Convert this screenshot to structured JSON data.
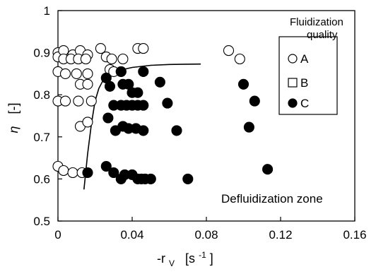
{
  "chart_data": {
    "type": "scatter",
    "title": "",
    "xlabel": {
      "prefix": "-r",
      "sub": "V",
      "unit_open": "[s",
      "unit_sup": "-1",
      "unit_close": "]"
    },
    "ylabel": {
      "symbol": "η",
      "unit": "[-]"
    },
    "xlim": [
      0,
      0.16
    ],
    "ylim": [
      0.5,
      1
    ],
    "x_ticks": [
      0,
      0.04,
      0.08,
      0.12,
      0.16
    ],
    "x_tick_labels": [
      "0",
      "0.04",
      "0.08",
      "0.12",
      "0.16"
    ],
    "y_ticks": [
      0.5,
      0.6,
      0.7,
      0.8,
      0.9,
      1
    ],
    "y_tick_labels": [
      "0.5",
      "0.6",
      "0.7",
      "0.8",
      "0.9",
      "1"
    ],
    "grid": false,
    "legend": {
      "title_lines": [
        "Fluidization",
        "quality"
      ],
      "placement": "top-right",
      "entries": [
        {
          "label": "A",
          "marker": "open-circle"
        },
        {
          "label": "B",
          "marker": "open-square"
        },
        {
          "label": "C",
          "marker": "filled-circle"
        }
      ]
    },
    "annotation": "Defluidization zone",
    "series": [
      {
        "name": "A",
        "marker": "open-circle",
        "points": [
          [
            0.0,
            0.9
          ],
          [
            0.0,
            0.89
          ],
          [
            0.003,
            0.905
          ],
          [
            0.008,
            0.895
          ],
          [
            0.012,
            0.905
          ],
          [
            0.016,
            0.895
          ],
          [
            0.023,
            0.91
          ],
          [
            0.026,
            0.89
          ],
          [
            0.029,
            0.885
          ],
          [
            0.035,
            0.885
          ],
          [
            0.043,
            0.91
          ],
          [
            0.046,
            0.91
          ],
          [
            0.092,
            0.905
          ],
          [
            0.098,
            0.885
          ],
          [
            0.003,
            0.885
          ],
          [
            0.007,
            0.885
          ],
          [
            0.011,
            0.885
          ],
          [
            0.015,
            0.885
          ],
          [
            0.0,
            0.855
          ],
          [
            0.004,
            0.85
          ],
          [
            0.01,
            0.85
          ],
          [
            0.016,
            0.85
          ],
          [
            0.028,
            0.86
          ],
          [
            0.03,
            0.855
          ],
          [
            0.034,
            0.855
          ],
          [
            0.012,
            0.825
          ],
          [
            0.016,
            0.825
          ],
          [
            0.0,
            0.785
          ],
          [
            0.004,
            0.785
          ],
          [
            0.011,
            0.785
          ],
          [
            0.018,
            0.785
          ],
          [
            0.012,
            0.725
          ],
          [
            0.016,
            0.735
          ],
          [
            0.0,
            0.63
          ],
          [
            0.003,
            0.62
          ],
          [
            0.008,
            0.615
          ],
          [
            0.013,
            0.615
          ]
        ]
      },
      {
        "name": "C",
        "marker": "filled-circle",
        "points": [
          [
            0.026,
            0.84
          ],
          [
            0.034,
            0.855
          ],
          [
            0.035,
            0.825
          ],
          [
            0.038,
            0.825
          ],
          [
            0.028,
            0.82
          ],
          [
            0.03,
            0.775
          ],
          [
            0.034,
            0.775
          ],
          [
            0.037,
            0.775
          ],
          [
            0.04,
            0.775
          ],
          [
            0.043,
            0.775
          ],
          [
            0.046,
            0.775
          ],
          [
            0.027,
            0.745
          ],
          [
            0.031,
            0.715
          ],
          [
            0.035,
            0.725
          ],
          [
            0.038,
            0.72
          ],
          [
            0.042,
            0.72
          ],
          [
            0.046,
            0.715
          ],
          [
            0.016,
            0.615
          ],
          [
            0.026,
            0.63
          ],
          [
            0.03,
            0.615
          ],
          [
            0.034,
            0.6
          ],
          [
            0.036,
            0.61
          ],
          [
            0.04,
            0.61
          ],
          [
            0.043,
            0.6
          ],
          [
            0.045,
            0.6
          ],
          [
            0.047,
            0.6
          ],
          [
            0.05,
            0.6
          ],
          [
            0.046,
            0.855
          ],
          [
            0.055,
            0.83
          ],
          [
            0.059,
            0.78
          ],
          [
            0.064,
            0.715
          ],
          [
            0.07,
            0.6
          ],
          [
            0.04,
            0.805
          ],
          [
            0.043,
            0.805
          ],
          [
            0.1,
            0.825
          ],
          [
            0.106,
            0.785
          ],
          [
            0.103,
            0.723
          ],
          [
            0.113,
            0.623
          ]
        ]
      }
    ],
    "curve": {
      "name": "",
      "points": [
        [
          0.014,
          0.575
        ],
        [
          0.016,
          0.66
        ],
        [
          0.018,
          0.73
        ],
        [
          0.02,
          0.785
        ],
        [
          0.022,
          0.815
        ],
        [
          0.025,
          0.84
        ],
        [
          0.03,
          0.855
        ],
        [
          0.04,
          0.865
        ],
        [
          0.05,
          0.87
        ],
        [
          0.06,
          0.872
        ],
        [
          0.077,
          0.873
        ]
      ]
    }
  }
}
